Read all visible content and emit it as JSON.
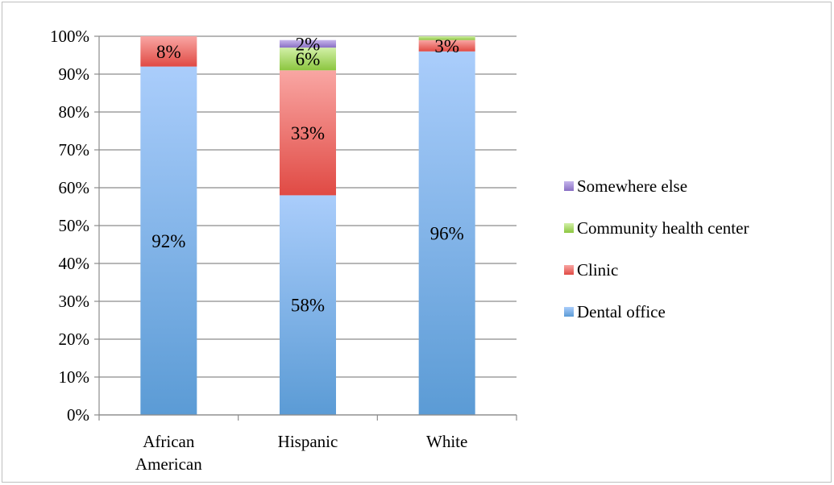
{
  "chart_data": {
    "type": "bar",
    "stacked": true,
    "percent": true,
    "categories": [
      [
        "African",
        "American"
      ],
      [
        "Hispanic"
      ],
      [
        "White"
      ]
    ],
    "series": [
      {
        "name": "Dental office",
        "values": [
          92,
          58,
          96
        ],
        "labels": [
          "92%",
          "58%",
          "96%"
        ],
        "color": "#5b9bd5",
        "color_light": "#aacdfb"
      },
      {
        "name": "Clinic",
        "values": [
          8,
          33,
          3
        ],
        "labels": [
          "8%",
          "33%",
          "3%"
        ],
        "color": "#e04a44",
        "color_light": "#f9a6a3"
      },
      {
        "name": "Community health center",
        "values": [
          0,
          6,
          1
        ],
        "labels": [
          "",
          "6%",
          ""
        ],
        "color": "#8cc63f",
        "color_light": "#d2f0a8"
      },
      {
        "name": "Somewhere else",
        "values": [
          0,
          2,
          0
        ],
        "labels": [
          "",
          "2%",
          ""
        ],
        "color": "#8a6fc4",
        "color_light": "#c6b6ec"
      }
    ],
    "legend_order": [
      "Somewhere else",
      "Community health center",
      "Clinic",
      "Dental office"
    ],
    "legend_position": "right",
    "ylim": [
      0,
      100
    ],
    "yticks": [
      "0%",
      "10%",
      "20%",
      "30%",
      "40%",
      "50%",
      "60%",
      "70%",
      "80%",
      "90%",
      "100%"
    ],
    "grid": true,
    "title": "",
    "xlabel": "",
    "ylabel": ""
  }
}
